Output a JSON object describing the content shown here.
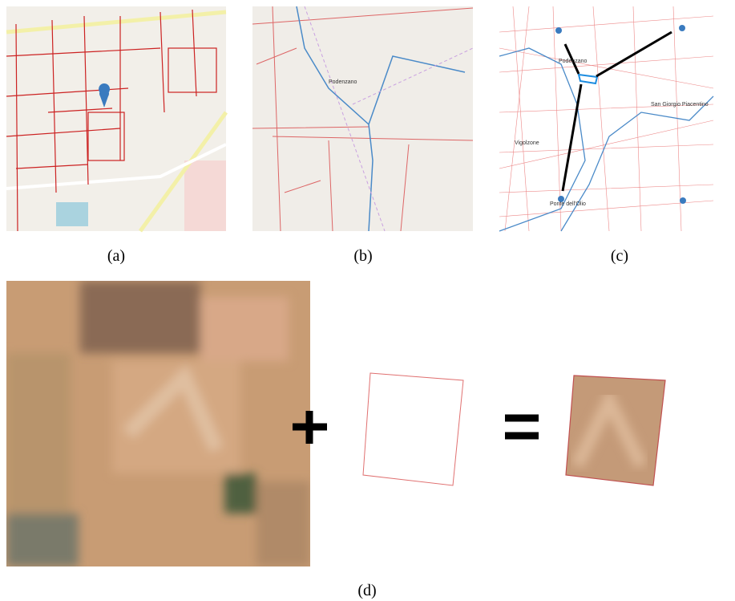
{
  "panels": [
    {
      "caption": "(a)"
    },
    {
      "caption": "(b)",
      "labels": [
        "Podenzano"
      ]
    },
    {
      "caption": "(c)",
      "labels": [
        "Podenzano",
        "San Giorgio Piacentino",
        "Vigolzone",
        "Ponte dell'Olio"
      ]
    },
    {
      "caption": "(d)"
    }
  ]
}
